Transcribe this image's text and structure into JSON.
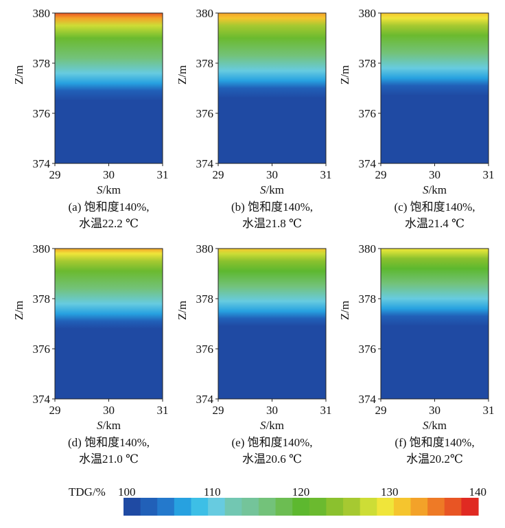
{
  "colors": {
    "colorbar": [
      "#1f4aa3",
      "#2160b8",
      "#2479cc",
      "#27a1e0",
      "#3dbfe6",
      "#67cbe0",
      "#72c7b2",
      "#74c49a",
      "#73c27a",
      "#6cbd52",
      "#5db82f",
      "#6bba2f",
      "#8bc12e",
      "#a6c931",
      "#cddd36",
      "#f0e53a",
      "#f5c52e",
      "#f3a229",
      "#ee7a26",
      "#e85524",
      "#e02a22"
    ],
    "tdg_min": 100,
    "tdg_max": 140
  },
  "chart_data": [
    {
      "type": "heatmap",
      "panel": "a",
      "xlabel_italic": "S",
      "xlabel_unit": "/km",
      "ylabel": "Z/m",
      "xlim": [
        29,
        31
      ],
      "ylim": [
        374,
        380
      ],
      "xticks": [
        "29",
        "30",
        "31"
      ],
      "yticks": [
        "374",
        "376",
        "378",
        "380"
      ],
      "caption_line1": "(a) 饱和度140%,",
      "caption_line2": "水温22.2 ℃",
      "tdg_profile": [
        {
          "z": 374,
          "tdg": 100
        },
        {
          "z": 376.5,
          "tdg": 100
        },
        {
          "z": 376.9,
          "tdg": 103
        },
        {
          "z": 377.2,
          "tdg": 106
        },
        {
          "z": 377.6,
          "tdg": 110
        },
        {
          "z": 378.2,
          "tdg": 116
        },
        {
          "z": 379,
          "tdg": 122
        },
        {
          "z": 379.5,
          "tdg": 128
        },
        {
          "z": 379.8,
          "tdg": 134
        },
        {
          "z": 380,
          "tdg": 138
        }
      ]
    },
    {
      "type": "heatmap",
      "panel": "b",
      "xlabel_italic": "S",
      "xlabel_unit": "/km",
      "ylabel": "Z/m",
      "xlim": [
        29,
        31
      ],
      "ylim": [
        374,
        380
      ],
      "xticks": [
        "29",
        "30",
        "31"
      ],
      "yticks": [
        "374",
        "376",
        "378",
        "380"
      ],
      "caption_line1": "(b) 饱和度140%,",
      "caption_line2": "水温21.8 ℃",
      "tdg_profile": [
        {
          "z": 374,
          "tdg": 100
        },
        {
          "z": 376.6,
          "tdg": 100
        },
        {
          "z": 377,
          "tdg": 103
        },
        {
          "z": 377.3,
          "tdg": 106
        },
        {
          "z": 377.7,
          "tdg": 110
        },
        {
          "z": 378.3,
          "tdg": 116
        },
        {
          "z": 379,
          "tdg": 121
        },
        {
          "z": 379.5,
          "tdg": 126
        },
        {
          "z": 379.8,
          "tdg": 131
        },
        {
          "z": 380,
          "tdg": 134
        }
      ]
    },
    {
      "type": "heatmap",
      "panel": "c",
      "xlabel_italic": "S",
      "xlabel_unit": "/km",
      "ylabel": "Z/m",
      "xlim": [
        29,
        31
      ],
      "ylim": [
        374,
        380
      ],
      "xticks": [
        "29",
        "30",
        "31"
      ],
      "yticks": [
        "374",
        "376",
        "378",
        "380"
      ],
      "caption_line1": "(c) 饱和度140%,",
      "caption_line2": "水温21.4 ℃",
      "tdg_profile": [
        {
          "z": 374,
          "tdg": 100
        },
        {
          "z": 376.7,
          "tdg": 100
        },
        {
          "z": 377.1,
          "tdg": 103
        },
        {
          "z": 377.4,
          "tdg": 106
        },
        {
          "z": 377.8,
          "tdg": 110
        },
        {
          "z": 378.4,
          "tdg": 116
        },
        {
          "z": 379.1,
          "tdg": 121
        },
        {
          "z": 379.5,
          "tdg": 125
        },
        {
          "z": 379.8,
          "tdg": 129
        },
        {
          "z": 380,
          "tdg": 132
        }
      ]
    },
    {
      "type": "heatmap",
      "panel": "d",
      "xlabel_italic": "S",
      "xlabel_unit": "/km",
      "ylabel": "Z/m",
      "xlim": [
        29,
        31
      ],
      "ylim": [
        374,
        380
      ],
      "xticks": [
        "29",
        "30",
        "31"
      ],
      "yticks": [
        "374",
        "376",
        "378",
        "380"
      ],
      "caption_line1": "(d) 饱和度140%,",
      "caption_line2": "水温21.0 ℃",
      "tdg_profile": [
        {
          "z": 374,
          "tdg": 100
        },
        {
          "z": 376.8,
          "tdg": 100
        },
        {
          "z": 377.1,
          "tdg": 103
        },
        {
          "z": 377.4,
          "tdg": 106
        },
        {
          "z": 377.8,
          "tdg": 110
        },
        {
          "z": 378.4,
          "tdg": 116
        },
        {
          "z": 379.1,
          "tdg": 121
        },
        {
          "z": 379.5,
          "tdg": 125
        },
        {
          "z": 379.8,
          "tdg": 130
        },
        {
          "z": 380,
          "tdg": 133
        }
      ]
    },
    {
      "type": "heatmap",
      "panel": "e",
      "xlabel_italic": "S",
      "xlabel_unit": "/km",
      "ylabel": "Z/m",
      "xlim": [
        29,
        31
      ],
      "ylim": [
        374,
        380
      ],
      "xticks": [
        "29",
        "30",
        "31"
      ],
      "yticks": [
        "374",
        "376",
        "378",
        "380"
      ],
      "caption_line1": "(e) 饱和度140%,",
      "caption_line2": "水温20.6 ℃",
      "tdg_profile": [
        {
          "z": 374,
          "tdg": 100
        },
        {
          "z": 376.9,
          "tdg": 100
        },
        {
          "z": 377.2,
          "tdg": 103
        },
        {
          "z": 377.5,
          "tdg": 106
        },
        {
          "z": 377.9,
          "tdg": 110
        },
        {
          "z": 378.5,
          "tdg": 116
        },
        {
          "z": 379.1,
          "tdg": 120
        },
        {
          "z": 379.5,
          "tdg": 124
        },
        {
          "z": 379.8,
          "tdg": 128
        },
        {
          "z": 380,
          "tdg": 131
        }
      ]
    },
    {
      "type": "heatmap",
      "panel": "f",
      "xlabel_italic": "S",
      "xlabel_unit": "/km",
      "ylabel": "Z/m",
      "xlim": [
        29,
        31
      ],
      "ylim": [
        374,
        380
      ],
      "xticks": [
        "29",
        "30",
        "31"
      ],
      "yticks": [
        "374",
        "376",
        "378",
        "380"
      ],
      "caption_line1": "(f) 饱和度140%,",
      "caption_line2": "水温20.2℃",
      "tdg_profile": [
        {
          "z": 374,
          "tdg": 100
        },
        {
          "z": 376.9,
          "tdg": 100
        },
        {
          "z": 377.3,
          "tdg": 103
        },
        {
          "z": 377.6,
          "tdg": 106
        },
        {
          "z": 378,
          "tdg": 110
        },
        {
          "z": 378.6,
          "tdg": 116
        },
        {
          "z": 379.2,
          "tdg": 120
        },
        {
          "z": 379.6,
          "tdg": 124
        },
        {
          "z": 379.85,
          "tdg": 127
        },
        {
          "z": 380,
          "tdg": 129
        }
      ]
    }
  ],
  "colorbar_legend": {
    "label": "TDG/%",
    "ticks": [
      "100",
      "110",
      "120",
      "130",
      "140"
    ],
    "tick_values": [
      100,
      110,
      120,
      130,
      140
    ]
  }
}
